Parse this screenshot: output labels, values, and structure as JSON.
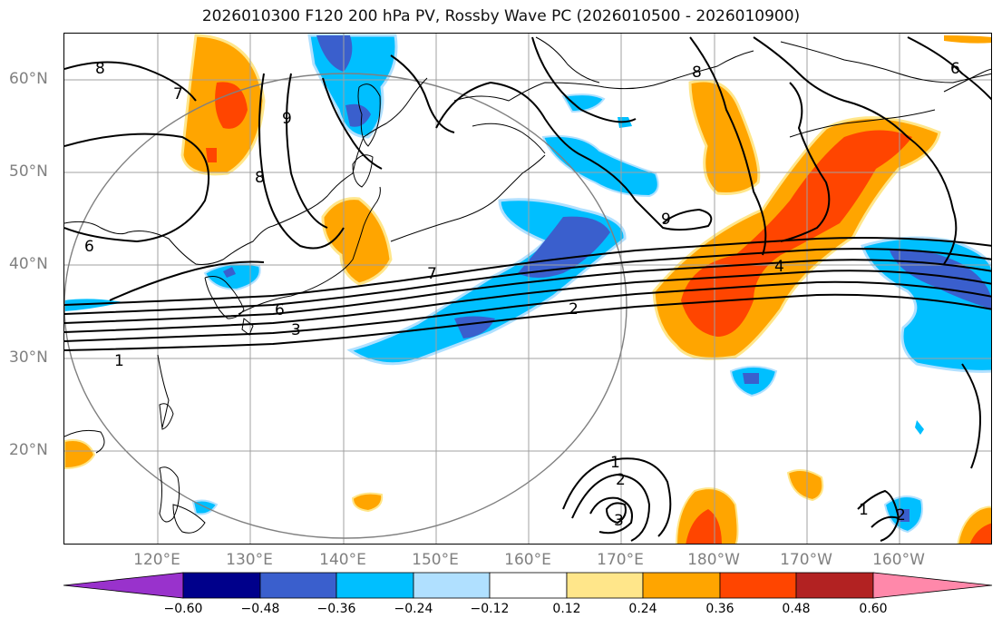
{
  "title": "2026010300 F120 200 hPa PV, Rossby Wave PC (2026010500 - 2026010900)",
  "lat_labels": [
    "60°N",
    "50°N",
    "40°N",
    "30°N",
    "20°N"
  ],
  "lon_labels": [
    "120°E",
    "130°E",
    "140°E",
    "150°E",
    "160°E",
    "170°E",
    "180°W",
    "170°W",
    "160°W"
  ],
  "contour_labels": [
    "8",
    "7",
    "9",
    "8",
    "8",
    "6",
    "6",
    "9",
    "7",
    "6",
    "3",
    "2",
    "4",
    "1",
    "1",
    "2",
    "3",
    "1",
    "2"
  ],
  "colorbar": {
    "ticks": [
      "−0.60",
      "−0.48",
      "−0.36",
      "−0.24",
      "−0.12",
      "0.12",
      "0.24",
      "0.36",
      "0.48",
      "0.60"
    ],
    "colors": [
      "#9932cc",
      "#00008b",
      "#3a5fcd",
      "#00bfff",
      "#b0e0ff",
      "#ffffff",
      "#ffe68a",
      "#ffa500",
      "#ff4500",
      "#b22222",
      "#ff88aa"
    ]
  }
}
